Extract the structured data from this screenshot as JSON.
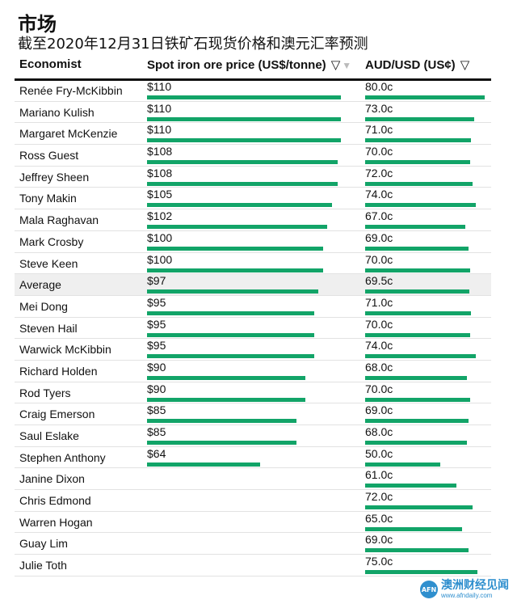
{
  "title": "市场",
  "subtitle": "截至2020年12月31日铁矿石现货价格和澳元汇率预测",
  "columns": {
    "economist": "Economist",
    "iron": "Spot iron ore price (US$/tonne)",
    "aud": "AUD/USD (US¢)",
    "sort_icon": "▽",
    "sort_active_icon": "▼"
  },
  "logo": {
    "mark": "AFN",
    "main": "澳洲财经见闻",
    "sub": "www.afndaily.com"
  },
  "colors": {
    "bar": "#12a468",
    "average_row": "#efefef",
    "logo": "#2f8fce"
  },
  "chart_data": {
    "type": "table",
    "iron_max": 110,
    "aud_max": 80,
    "rows": [
      {
        "name": "Renée Fry-McKibbin",
        "iron": 110,
        "iron_label": "$110",
        "aud": 80.0,
        "aud_label": "80.0c"
      },
      {
        "name": "Mariano Kulish",
        "iron": 110,
        "iron_label": "$110",
        "aud": 73.0,
        "aud_label": "73.0c"
      },
      {
        "name": "Margaret McKenzie",
        "iron": 110,
        "iron_label": "$110",
        "aud": 71.0,
        "aud_label": "71.0c"
      },
      {
        "name": "Ross Guest",
        "iron": 108,
        "iron_label": "$108",
        "aud": 70.0,
        "aud_label": "70.0c"
      },
      {
        "name": "Jeffrey Sheen",
        "iron": 108,
        "iron_label": "$108",
        "aud": 72.0,
        "aud_label": "72.0c"
      },
      {
        "name": "Tony Makin",
        "iron": 105,
        "iron_label": "$105",
        "aud": 74.0,
        "aud_label": "74.0c"
      },
      {
        "name": "Mala Raghavan",
        "iron": 102,
        "iron_label": "$102",
        "aud": 67.0,
        "aud_label": "67.0c"
      },
      {
        "name": "Mark Crosby",
        "iron": 100,
        "iron_label": "$100",
        "aud": 69.0,
        "aud_label": "69.0c"
      },
      {
        "name": "Steve Keen",
        "iron": 100,
        "iron_label": "$100",
        "aud": 70.0,
        "aud_label": "70.0c"
      },
      {
        "name": "Average",
        "iron": 97,
        "iron_label": "$97",
        "aud": 69.5,
        "aud_label": "69.5c",
        "highlight": true
      },
      {
        "name": "Mei Dong",
        "iron": 95,
        "iron_label": "$95",
        "aud": 71.0,
        "aud_label": "71.0c"
      },
      {
        "name": "Steven Hail",
        "iron": 95,
        "iron_label": "$95",
        "aud": 70.0,
        "aud_label": "70.0c"
      },
      {
        "name": "Warwick McKibbin",
        "iron": 95,
        "iron_label": "$95",
        "aud": 74.0,
        "aud_label": "74.0c"
      },
      {
        "name": "Richard Holden",
        "iron": 90,
        "iron_label": "$90",
        "aud": 68.0,
        "aud_label": "68.0c"
      },
      {
        "name": "Rod Tyers",
        "iron": 90,
        "iron_label": "$90",
        "aud": 70.0,
        "aud_label": "70.0c"
      },
      {
        "name": "Craig Emerson",
        "iron": 85,
        "iron_label": "$85",
        "aud": 69.0,
        "aud_label": "69.0c"
      },
      {
        "name": "Saul Eslake",
        "iron": 85,
        "iron_label": "$85",
        "aud": 68.0,
        "aud_label": "68.0c"
      },
      {
        "name": "Stephen Anthony",
        "iron": 64,
        "iron_label": "$64",
        "aud": 50.0,
        "aud_label": "50.0c"
      },
      {
        "name": "Janine Dixon",
        "iron": null,
        "iron_label": "",
        "aud": 61.0,
        "aud_label": "61.0c"
      },
      {
        "name": "Chris Edmond",
        "iron": null,
        "iron_label": "",
        "aud": 72.0,
        "aud_label": "72.0c"
      },
      {
        "name": "Warren Hogan",
        "iron": null,
        "iron_label": "",
        "aud": 65.0,
        "aud_label": "65.0c"
      },
      {
        "name": "Guay Lim",
        "iron": null,
        "iron_label": "",
        "aud": 69.0,
        "aud_label": "69.0c"
      },
      {
        "name": "Julie Toth",
        "iron": null,
        "iron_label": "",
        "aud": 75.0,
        "aud_label": "75.0c"
      }
    ]
  }
}
